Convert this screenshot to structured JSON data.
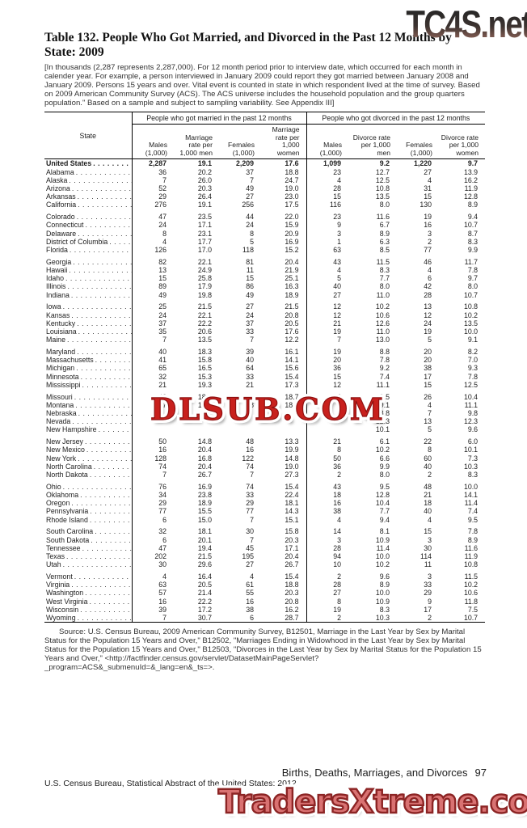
{
  "watermarks": {
    "top": "TC4S.net",
    "middle": "DLSUB.COM",
    "bottom": "TradersXtreme.com"
  },
  "page": {
    "title": "Table 132. People Who Got Married, and Divorced in the Past 12 Months by State: 2009",
    "intro": "[In thousands (2,287 represents 2,287,000). For 12 month period prior to interview date, which occurred for each month in calender year. For example, a person interviewed in January 2009 could report they got married between January 2008 and January 2009. Persons 15 years and over. Vital event is counted in state in which respondent lived at the time of survey. Based on 2009 American Community Survey (ACS). The ACS universe includes the household population and the group quarters population.\" Based on a sample and subject to sampling variability. See Appendix III]",
    "source": "Source: U.S. Census Bureau, 2009 American Community Survey, B12501, Marriage in the Last Year by Sex by Marital Status for the Population 15 Years and Over,\" B12502, \"Marriages Ending in Widowhood in the Last Year by Sex by Marital Status for the Population 15 Years and Over,\" B12503, \"Divorces in the Last Year by Sex by Marital Status for the Population 15 Years and Over,\" <http://factfinder.census.gov/servlet/DatasetMainPageServlet?_program=ACS&_submenuId=&_lang=en&_ts=>.",
    "footer_section": "Births, Deaths, Marriages, and Divorces",
    "page_number": "97",
    "footer_imprint": "U.S. Census Bureau, Statistical Abstract of the United States: 2012"
  },
  "table": {
    "state_header": "State",
    "group_headers": [
      "People who got married in the past 12 months",
      "People who got divorced in the past 12 months"
    ],
    "sub_headers": [
      "Males (1,000)",
      "Marriage rate per 1,000 men",
      "Females (1,000)",
      "Marriage rate per 1,000 women",
      "Males (1,000)",
      "Divorce rate per 1,000 men",
      "Females (1,000)",
      "Divorce rate per 1,000 women"
    ],
    "us_row": {
      "state": "United States",
      "values": [
        "2,287",
        "19.1",
        "2,209",
        "17.6",
        "1,099",
        "9.2",
        "1,220",
        "9.7"
      ]
    },
    "groups": [
      [
        {
          "state": "Alabama",
          "values": [
            "36",
            "20.2",
            "37",
            "18.8",
            "23",
            "12.7",
            "27",
            "13.9"
          ]
        },
        {
          "state": "Alaska",
          "values": [
            "7",
            "26.0",
            "7",
            "24.7",
            "4",
            "12.5",
            "4",
            "16.2"
          ]
        },
        {
          "state": "Arizona",
          "values": [
            "52",
            "20.3",
            "49",
            "19.0",
            "28",
            "10.8",
            "31",
            "11.9"
          ]
        },
        {
          "state": "Arkansas",
          "values": [
            "29",
            "26.4",
            "27",
            "23.0",
            "15",
            "13.5",
            "15",
            "12.8"
          ]
        },
        {
          "state": "California",
          "values": [
            "276",
            "19.1",
            "256",
            "17.5",
            "116",
            "8.0",
            "130",
            "8.9"
          ]
        }
      ],
      [
        {
          "state": "Colorado",
          "values": [
            "47",
            "23.5",
            "44",
            "22.0",
            "23",
            "11.6",
            "19",
            "9.4"
          ]
        },
        {
          "state": "Connecticut",
          "values": [
            "24",
            "17.1",
            "24",
            "15.9",
            "9",
            "6.7",
            "16",
            "10.7"
          ]
        },
        {
          "state": "Delaware",
          "values": [
            "8",
            "23.1",
            "8",
            "20.9",
            "3",
            "8.9",
            "3",
            "8.7"
          ]
        },
        {
          "state": "District of Columbia",
          "values": [
            "4",
            "17.7",
            "5",
            "16.9",
            "1",
            "6.3",
            "2",
            "8.3"
          ]
        },
        {
          "state": "Florida",
          "values": [
            "126",
            "17.0",
            "118",
            "15.2",
            "63",
            "8.5",
            "77",
            "9.9"
          ]
        }
      ],
      [
        {
          "state": "Georgia",
          "values": [
            "82",
            "22.1",
            "81",
            "20.4",
            "43",
            "11.5",
            "46",
            "11.7"
          ]
        },
        {
          "state": "Hawaii",
          "values": [
            "13",
            "24.9",
            "11",
            "21.9",
            "4",
            "8.3",
            "4",
            "7.8"
          ]
        },
        {
          "state": "Idaho",
          "values": [
            "15",
            "25.8",
            "15",
            "25.1",
            "5",
            "7.7",
            "6",
            "9.7"
          ]
        },
        {
          "state": "Illinois",
          "values": [
            "89",
            "17.9",
            "86",
            "16.3",
            "40",
            "8.0",
            "42",
            "8.0"
          ]
        },
        {
          "state": "Indiana",
          "values": [
            "49",
            "19.8",
            "49",
            "18.9",
            "27",
            "11.0",
            "28",
            "10.7"
          ]
        }
      ],
      [
        {
          "state": "Iowa",
          "values": [
            "25",
            "21.5",
            "27",
            "21.5",
            "12",
            "10.2",
            "13",
            "10.8"
          ]
        },
        {
          "state": "Kansas",
          "values": [
            "24",
            "22.1",
            "24",
            "20.8",
            "12",
            "10.6",
            "12",
            "10.2"
          ]
        },
        {
          "state": "Kentucky",
          "values": [
            "37",
            "22.2",
            "37",
            "20.5",
            "21",
            "12.6",
            "24",
            "13.5"
          ]
        },
        {
          "state": "Louisiana",
          "values": [
            "35",
            "20.6",
            "33",
            "17.6",
            "19",
            "11.0",
            "19",
            "10.0"
          ]
        },
        {
          "state": "Maine",
          "values": [
            "7",
            "13.5",
            "7",
            "12.2",
            "7",
            "13.0",
            "5",
            "9.1"
          ]
        }
      ],
      [
        {
          "state": "Maryland",
          "values": [
            "40",
            "18.3",
            "39",
            "16.1",
            "19",
            "8.8",
            "20",
            "8.2"
          ]
        },
        {
          "state": "Massachusetts",
          "values": [
            "41",
            "15.8",
            "40",
            "14.1",
            "20",
            "7.8",
            "20",
            "7.0"
          ]
        },
        {
          "state": "Michigan",
          "values": [
            "65",
            "16.5",
            "64",
            "15.6",
            "36",
            "9.2",
            "38",
            "9.3"
          ]
        },
        {
          "state": "Minnesota",
          "values": [
            "32",
            "15.3",
            "33",
            "15.4",
            "15",
            "7.4",
            "17",
            "7.8"
          ]
        },
        {
          "state": "Mississippi",
          "values": [
            "21",
            "19.3",
            "21",
            "17.3",
            "12",
            "11.1",
            "15",
            "12.5"
          ]
        }
      ],
      [
        {
          "state": "Missouri",
          "values": [
            "43",
            "18.6",
            "46",
            "18.7",
            "22",
            "9.5",
            "26",
            "10.4"
          ]
        },
        {
          "state": "Montana",
          "values": [
            "7",
            "18.5",
            "8",
            "18.8",
            "4",
            "9.1",
            "4",
            "11.1"
          ]
        },
        {
          "state": "Nebraska",
          "values": [
            "",
            "",
            "",
            "",
            "",
            "8.8",
            "7",
            "9.8"
          ]
        },
        {
          "state": "Nevada",
          "values": [
            "",
            "",
            "",
            "",
            "",
            "12.3",
            "13",
            "12.3"
          ]
        },
        {
          "state": "New Hampshire",
          "values": [
            "",
            "",
            "",
            "",
            "",
            "10.1",
            "5",
            "9.6"
          ]
        }
      ],
      [
        {
          "state": "New Jersey",
          "values": [
            "50",
            "14.8",
            "48",
            "13.3",
            "21",
            "6.1",
            "22",
            "6.0"
          ]
        },
        {
          "state": "New Mexico",
          "values": [
            "16",
            "20.4",
            "16",
            "19.9",
            "8",
            "10.2",
            "8",
            "10.1"
          ]
        },
        {
          "state": "New York",
          "values": [
            "128",
            "16.8",
            "122",
            "14.8",
            "50",
            "6.6",
            "60",
            "7.3"
          ]
        },
        {
          "state": "North Carolina",
          "values": [
            "74",
            "20.4",
            "74",
            "19.0",
            "36",
            "9.9",
            "40",
            "10.3"
          ]
        },
        {
          "state": "North Dakota",
          "values": [
            "7",
            "26.7",
            "7",
            "27.3",
            "2",
            "8.0",
            "2",
            "8.3"
          ]
        }
      ],
      [
        {
          "state": "Ohio",
          "values": [
            "76",
            "16.9",
            "74",
            "15.4",
            "43",
            "9.5",
            "48",
            "10.0"
          ]
        },
        {
          "state": "Oklahoma",
          "values": [
            "34",
            "23.8",
            "33",
            "22.4",
            "18",
            "12.8",
            "21",
            "14.1"
          ]
        },
        {
          "state": "Oregon",
          "values": [
            "29",
            "18.9",
            "29",
            "18.1",
            "16",
            "10.4",
            "18",
            "11.4"
          ]
        },
        {
          "state": "Pennsylvania",
          "values": [
            "77",
            "15.5",
            "77",
            "14.3",
            "38",
            "7.7",
            "40",
            "7.4"
          ]
        },
        {
          "state": "Rhode Island",
          "values": [
            "6",
            "15.0",
            "7",
            "15.1",
            "4",
            "9.4",
            "4",
            "9.5"
          ]
        }
      ],
      [
        {
          "state": "South Carolina",
          "values": [
            "32",
            "18.1",
            "30",
            "15.8",
            "14",
            "8.1",
            "15",
            "7.8"
          ]
        },
        {
          "state": "South Dakota",
          "values": [
            "6",
            "20.1",
            "7",
            "20.3",
            "3",
            "10.9",
            "3",
            "8.9"
          ]
        },
        {
          "state": "Tennessee",
          "values": [
            "47",
            "19.4",
            "45",
            "17.1",
            "28",
            "11.4",
            "30",
            "11.6"
          ]
        },
        {
          "state": "Texas",
          "values": [
            "202",
            "21.5",
            "195",
            "20.4",
            "94",
            "10.0",
            "114",
            "11.9"
          ]
        },
        {
          "state": "Utah",
          "values": [
            "30",
            "29.6",
            "27",
            "26.7",
            "10",
            "10.2",
            "11",
            "10.8"
          ]
        }
      ],
      [
        {
          "state": "Vermont",
          "values": [
            "4",
            "16.4",
            "4",
            "15.4",
            "2",
            "9.6",
            "3",
            "11.5"
          ]
        },
        {
          "state": "Virginia",
          "values": [
            "63",
            "20.5",
            "61",
            "18.8",
            "28",
            "8.9",
            "33",
            "10.2"
          ]
        },
        {
          "state": "Washington",
          "values": [
            "57",
            "21.4",
            "55",
            "20.3",
            "27",
            "10.0",
            "29",
            "10.6"
          ]
        },
        {
          "state": "West Virginia",
          "values": [
            "16",
            "22.2",
            "16",
            "20.8",
            "8",
            "10.9",
            "9",
            "11.8"
          ]
        },
        {
          "state": "Wisconsin",
          "values": [
            "39",
            "17.2",
            "38",
            "16.2",
            "19",
            "8.3",
            "17",
            "7.5"
          ]
        },
        {
          "state": "Wyoming",
          "values": [
            "7",
            "30.7",
            "6",
            "28.7",
            "2",
            "10.3",
            "2",
            "10.7"
          ]
        }
      ]
    ]
  },
  "colors": {
    "watermark_red": "#c8201d",
    "watermark_salmon": "#d97272",
    "rule_black": "#000000"
  }
}
